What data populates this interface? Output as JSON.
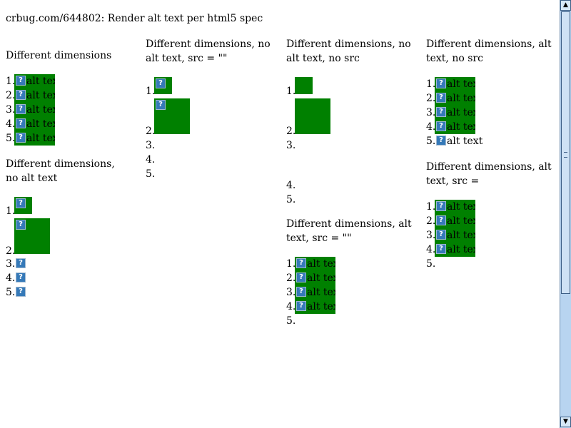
{
  "page": {
    "title": "crbug.com/644802: Render alt text per html5 spec"
  },
  "labels": {
    "n1": "1.",
    "n2": "2.",
    "n3": "3.",
    "n4": "4.",
    "n5": "5."
  },
  "alt_text": "alt text",
  "icon_glyph": "?",
  "colors": {
    "image_box": "#008000",
    "icon": "#3579b8",
    "scrollbar": "#b8d4f0"
  },
  "sections": {
    "different_dimensions": {
      "heading": "Different dimensions"
    },
    "no_alt_text": {
      "heading": "Different dimensions, no alt text"
    },
    "no_alt_text_src_empty": {
      "heading": "Different dimensions, no alt text, src = \"\""
    },
    "no_alt_text_no_src": {
      "heading": "Different dimensions, no alt text, no src"
    },
    "alt_text_src_empty": {
      "heading": "Different dimensions, alt text, src = \"\""
    },
    "alt_text_no_src": {
      "heading": "Different dimensions, alt text, no src"
    },
    "alt_text_src_eq": {
      "heading": "Different dimensions, alt text, src ="
    }
  },
  "scrollbar": {
    "up_arrow": "▲",
    "down_arrow": "▼"
  }
}
